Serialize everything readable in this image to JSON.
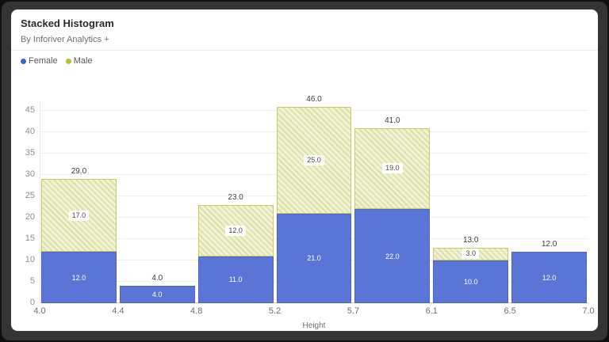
{
  "card": {
    "title": "Stacked Histogram",
    "subtitle": "By Inforiver Analytics +"
  },
  "legend": {
    "items": [
      {
        "label": "Female",
        "color": "#4263cf"
      },
      {
        "label": "Male",
        "color": "#b9c32c"
      }
    ]
  },
  "chart_data": {
    "type": "bar",
    "variant": "stacked-histogram",
    "title": "Stacked Histogram",
    "xlabel": "Height",
    "ylabel": "",
    "grid": true,
    "legend_position": "top-left",
    "ylim": [
      0,
      47.5
    ],
    "y_ticks": [
      0,
      5,
      10,
      15,
      20,
      25,
      30,
      35,
      40,
      45
    ],
    "y_tick_labels": [
      "0",
      "5",
      "10",
      "15",
      "20",
      "25",
      "30",
      "35",
      "40",
      "45"
    ],
    "bin_edges": [
      4.0,
      4.4,
      4.8,
      5.2,
      5.7,
      6.1,
      6.5,
      7.0
    ],
    "bin_labels": [
      "4.0",
      "4.4",
      "4.8",
      "5.2",
      "5.7",
      "6.1",
      "6.5",
      "7.0"
    ],
    "categories": [
      "4.0-4.4",
      "4.4-4.8",
      "4.8-5.2",
      "5.2-5.7",
      "5.7-6.1",
      "6.1-6.5",
      "6.5-7.0"
    ],
    "series": [
      {
        "name": "Female",
        "color": "#5b75d7",
        "values": [
          12,
          4,
          11,
          21,
          22,
          10,
          12
        ],
        "value_labels": [
          "12.0",
          "4.0",
          "11.0",
          "21.0",
          "22.0",
          "10.0",
          "12.0"
        ]
      },
      {
        "name": "Male",
        "color": "#e9ebc4",
        "hatch_color": "#c6cc61",
        "values": [
          17,
          0,
          12,
          25,
          19,
          3,
          0
        ],
        "value_labels": [
          "17.0",
          "",
          "12.0",
          "25.0",
          "19.0",
          "3.0",
          ""
        ]
      }
    ],
    "totals": [
      29,
      4,
      23,
      46,
      41,
      13,
      12
    ],
    "total_labels": [
      "29.0",
      "4.0",
      "23.0",
      "46.0",
      "41.0",
      "13.0",
      "12.0"
    ]
  }
}
